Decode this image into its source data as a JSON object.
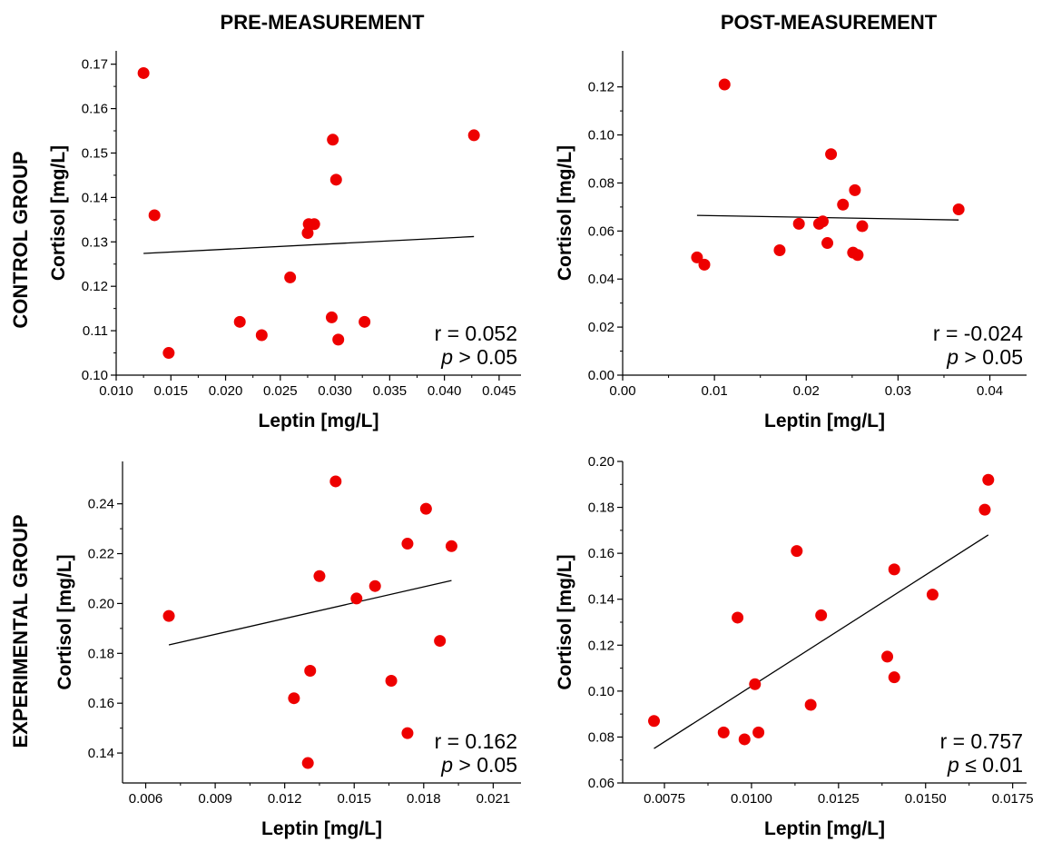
{
  "column_titles": [
    "PRE-MEASUREMENT",
    "POST-MEASUREMENT"
  ],
  "row_titles": [
    "CONTROL GROUP",
    "EXPERIMENTAL GROUP"
  ],
  "colors": {
    "point": "#ee0000",
    "line": "#000000"
  },
  "chart_data": [
    {
      "type": "scatter",
      "xlabel": "Leptin [mg/L]",
      "ylabel": "Cortisol [mg/L]",
      "xlim": [
        0.01,
        0.047
      ],
      "ylim": [
        0.1,
        0.173
      ],
      "xticks": [
        0.01,
        0.015,
        0.02,
        0.025,
        0.03,
        0.035,
        0.04,
        0.045
      ],
      "xtick_labels": [
        "0.010",
        "0.015",
        "0.020",
        "0.025",
        "0.030",
        "0.035",
        "0.040",
        "0.045"
      ],
      "yticks": [
        0.1,
        0.11,
        0.12,
        0.13,
        0.14,
        0.15,
        0.16,
        0.17
      ],
      "ytick_labels": [
        "0.10",
        "0.11",
        "0.12",
        "0.13",
        "0.14",
        "0.15",
        "0.16",
        "0.17"
      ],
      "points": [
        [
          0.0125,
          0.168
        ],
        [
          0.0135,
          0.136
        ],
        [
          0.0148,
          0.105
        ],
        [
          0.0213,
          0.112
        ],
        [
          0.0233,
          0.109
        ],
        [
          0.0259,
          0.122
        ],
        [
          0.0275,
          0.132
        ],
        [
          0.0276,
          0.134
        ],
        [
          0.0281,
          0.134
        ],
        [
          0.0297,
          0.113
        ],
        [
          0.0298,
          0.153
        ],
        [
          0.0301,
          0.144
        ],
        [
          0.0303,
          0.108
        ],
        [
          0.0327,
          0.112
        ],
        [
          0.0427,
          0.154
        ]
      ],
      "fit_line": [
        [
          0.0125,
          0.1274
        ],
        [
          0.0427,
          0.1312
        ]
      ],
      "stat_r": "r = 0.052",
      "stat_p_symbol": "p",
      "stat_p_rest": " > 0.05"
    },
    {
      "type": "scatter",
      "xlabel": "Leptin [mg/L]",
      "ylabel": "Cortisol [mg/L]",
      "xlim": [
        0,
        0.044
      ],
      "ylim": [
        0,
        0.135
      ],
      "xticks": [
        0.0,
        0.01,
        0.02,
        0.03,
        0.04
      ],
      "xtick_labels": [
        "0.00",
        "0.01",
        "0.02",
        "0.03",
        "0.04"
      ],
      "yticks": [
        0.0,
        0.02,
        0.04,
        0.06,
        0.08,
        0.1,
        0.12
      ],
      "ytick_labels": [
        "0.00",
        "0.02",
        "0.04",
        "0.06",
        "0.08",
        "0.10",
        "0.12"
      ],
      "points": [
        [
          0.0081,
          0.049
        ],
        [
          0.0089,
          0.046
        ],
        [
          0.0111,
          0.121
        ],
        [
          0.0171,
          0.052
        ],
        [
          0.0192,
          0.063
        ],
        [
          0.0214,
          0.063
        ],
        [
          0.0218,
          0.064
        ],
        [
          0.0223,
          0.055
        ],
        [
          0.0227,
          0.092
        ],
        [
          0.024,
          0.071
        ],
        [
          0.0251,
          0.051
        ],
        [
          0.0253,
          0.077
        ],
        [
          0.0256,
          0.05
        ],
        [
          0.0261,
          0.062
        ],
        [
          0.0366,
          0.069
        ]
      ],
      "fit_line": [
        [
          0.0081,
          0.0665
        ],
        [
          0.0366,
          0.0646
        ]
      ],
      "stat_r": "r = -0.024",
      "stat_p_symbol": "p",
      "stat_p_rest": " > 0.05"
    },
    {
      "type": "scatter",
      "xlabel": "Leptin [mg/L]",
      "ylabel": "Cortisol [mg/L]",
      "xlim": [
        0.005,
        0.0222
      ],
      "ylim": [
        0.128,
        0.257
      ],
      "xticks": [
        0.006,
        0.009,
        0.012,
        0.015,
        0.018,
        0.021
      ],
      "xtick_labels": [
        "0.006",
        "0.009",
        "0.012",
        "0.015",
        "0.018",
        "0.021"
      ],
      "yticks": [
        0.14,
        0.16,
        0.18,
        0.2,
        0.22,
        0.24
      ],
      "ytick_labels": [
        "0.14",
        "0.16",
        "0.18",
        "0.20",
        "0.22",
        "0.24"
      ],
      "points": [
        [
          0.007,
          0.195
        ],
        [
          0.0124,
          0.162
        ],
        [
          0.013,
          0.136
        ],
        [
          0.0131,
          0.173
        ],
        [
          0.0135,
          0.211
        ],
        [
          0.0142,
          0.249
        ],
        [
          0.0151,
          0.202
        ],
        [
          0.0159,
          0.207
        ],
        [
          0.0166,
          0.169
        ],
        [
          0.0173,
          0.148
        ],
        [
          0.0173,
          0.224
        ],
        [
          0.0181,
          0.238
        ],
        [
          0.0187,
          0.185
        ],
        [
          0.0192,
          0.223
        ]
      ],
      "fit_line": [
        [
          0.007,
          0.1834
        ],
        [
          0.0192,
          0.2092
        ]
      ],
      "stat_r": "r = 0.162",
      "stat_p_symbol": "p",
      "stat_p_rest": " > 0.05"
    },
    {
      "type": "scatter",
      "xlabel": "Leptin [mg/L]",
      "ylabel": "Cortisol [mg/L]",
      "xlim": [
        0.0063,
        0.0179
      ],
      "ylim": [
        0.06,
        0.2
      ],
      "xticks": [
        0.0075,
        0.01,
        0.0125,
        0.015,
        0.0175
      ],
      "xtick_labels": [
        "0.0075",
        "0.0100",
        "0.0125",
        "0.0150",
        "0.0175"
      ],
      "yticks": [
        0.06,
        0.08,
        0.1,
        0.12,
        0.14,
        0.16,
        0.18,
        0.2
      ],
      "ytick_labels": [
        "0.06",
        "0.08",
        "0.10",
        "0.12",
        "0.14",
        "0.16",
        "0.18",
        "0.20"
      ],
      "points": [
        [
          0.0072,
          0.087
        ],
        [
          0.0092,
          0.082
        ],
        [
          0.0096,
          0.132
        ],
        [
          0.0098,
          0.079
        ],
        [
          0.0101,
          0.103
        ],
        [
          0.0102,
          0.082
        ],
        [
          0.0113,
          0.161
        ],
        [
          0.0117,
          0.094
        ],
        [
          0.012,
          0.133
        ],
        [
          0.0139,
          0.115
        ],
        [
          0.0141,
          0.106
        ],
        [
          0.0141,
          0.153
        ],
        [
          0.0152,
          0.142
        ],
        [
          0.0167,
          0.179
        ],
        [
          0.0168,
          0.192
        ]
      ],
      "fit_line": [
        [
          0.0072,
          0.075
        ],
        [
          0.0168,
          0.168
        ]
      ],
      "stat_r": "r = 0.757",
      "stat_p_symbol": "p",
      "stat_p_rest": " ≤ 0.01"
    }
  ]
}
